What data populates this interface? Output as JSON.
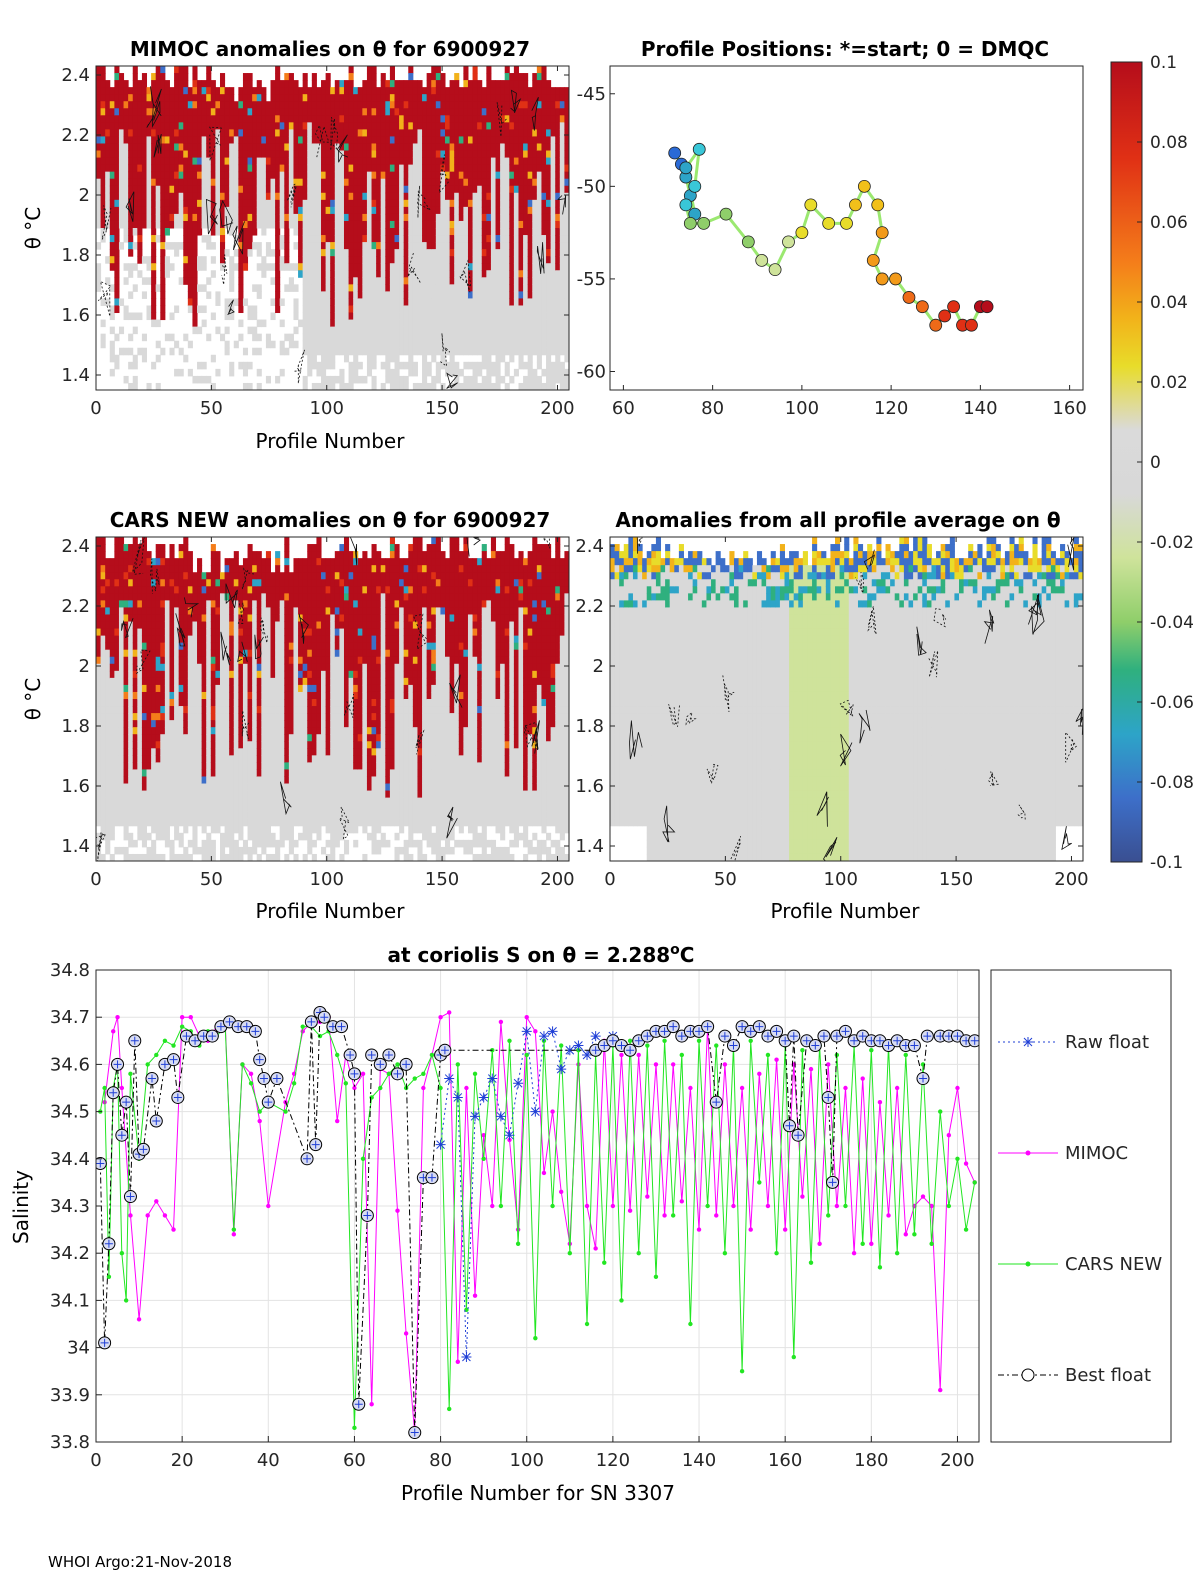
{
  "footer": "WHOI Argo:21-Nov-2018",
  "colors": {
    "red": "#b5121b",
    "gray": "#d9d9d9",
    "raw": "#1f3fd6",
    "mimoc": "#ff00ff",
    "cars": "#22e622",
    "best": "#000000"
  },
  "chart_data": [
    {
      "id": "mimoc",
      "type": "heatmap",
      "title": "MIMOC anomalies on θ  for 6900927",
      "xlabel": "Profile Number",
      "ylabel": "θ °C",
      "xlim": [
        0,
        205
      ],
      "ylim": [
        1.35,
        2.43
      ],
      "xticks": [
        0,
        50,
        100,
        150,
        200
      ],
      "yticks": [
        1.4,
        1.6,
        1.8,
        2,
        2.2,
        2.4
      ],
      "ytick_labels": [
        "1.4",
        "1.6",
        "1.8",
        "2",
        "2.2",
        "2.4"
      ]
    },
    {
      "id": "positions",
      "type": "scatter",
      "title": "Profile Positions: *=start; 0 = DMQC",
      "xlabel": "",
      "ylabel": "",
      "xlim": [
        57,
        163
      ],
      "ylim": [
        -61,
        -43.5
      ],
      "xticks": [
        60,
        80,
        100,
        120,
        140,
        160
      ],
      "yticks": [
        -45,
        -50,
        -55,
        -60
      ],
      "ytick_labels": [
        "-45",
        "-50",
        "-55",
        "-60"
      ],
      "track": [
        [
          71.5,
          -48.2
        ],
        [
          73,
          -48.8
        ],
        [
          74,
          -49.5
        ],
        [
          75,
          -50.5
        ],
        [
          76,
          -51.5
        ],
        [
          74,
          -49
        ],
        [
          77,
          -48
        ],
        [
          76,
          -50
        ],
        [
          74,
          -51
        ],
        [
          75,
          -52
        ],
        [
          78,
          -52
        ],
        [
          83,
          -51.5
        ],
        [
          88,
          -53
        ],
        [
          91,
          -54
        ],
        [
          94,
          -54.5
        ],
        [
          97,
          -53
        ],
        [
          100,
          -52.5
        ],
        [
          102,
          -51
        ],
        [
          106,
          -52
        ],
        [
          110,
          -52
        ],
        [
          112,
          -51
        ],
        [
          114,
          -50
        ],
        [
          117,
          -51
        ],
        [
          118,
          -52.5
        ],
        [
          116,
          -54
        ],
        [
          118,
          -55
        ],
        [
          121,
          -55
        ],
        [
          124,
          -56
        ],
        [
          127,
          -56.5
        ],
        [
          130,
          -57.5
        ],
        [
          132,
          -57
        ],
        [
          134,
          -56.5
        ],
        [
          136,
          -57.5
        ],
        [
          138,
          -57.5
        ],
        [
          140,
          -56.5
        ],
        [
          141.5,
          -56.5
        ]
      ],
      "colorbar": {
        "ticks": [
          0.1,
          0.08,
          0.06,
          0.04,
          0.02,
          0,
          -0.02,
          -0.04,
          -0.06,
          -0.08,
          -0.1
        ],
        "labels": [
          "0.1",
          "0.08",
          "0.06",
          "0.04",
          "0.02",
          "0",
          "-0.02",
          "-0.04",
          "-0.06",
          "-0.08",
          "-0.1"
        ]
      }
    },
    {
      "id": "cars",
      "type": "heatmap",
      "title": "CARS NEW anomalies on θ for 6900927",
      "xlabel": "Profile Number",
      "ylabel": "θ °C",
      "xlim": [
        0,
        205
      ],
      "ylim": [
        1.35,
        2.43
      ],
      "xticks": [
        0,
        50,
        100,
        150,
        200
      ],
      "yticks": [
        1.4,
        1.6,
        1.8,
        2,
        2.2,
        2.4
      ],
      "ytick_labels": [
        "1.4",
        "1.6",
        "1.8",
        "2",
        "2.2",
        "2.4"
      ]
    },
    {
      "id": "average",
      "type": "heatmap",
      "title": "Anomalies from all profile average on θ",
      "xlabel": "Profile Number",
      "ylabel": "",
      "xlim": [
        0,
        205
      ],
      "ylim": [
        1.35,
        2.43
      ],
      "xticks": [
        0,
        50,
        100,
        150,
        200
      ],
      "yticks": [
        1.4,
        1.6,
        1.8,
        2,
        2.2,
        2.4
      ],
      "ytick_labels": [
        "1.4",
        "1.6",
        "1.8",
        "2",
        "2.2",
        "2.4"
      ]
    },
    {
      "id": "salinity",
      "type": "line",
      "title": "at coriolis S on θ = 2.288°C",
      "title_main": "at coriolis S on θ = 2.288",
      "title_unit": "o",
      "title_tail": "C",
      "xlabel": "Profile Number for SN 3307",
      "ylabel": "Salinity",
      "xlim": [
        0,
        205
      ],
      "ylim": [
        33.8,
        34.8
      ],
      "xticks": [
        0,
        20,
        40,
        60,
        80,
        100,
        120,
        140,
        160,
        180,
        200
      ],
      "yticks": [
        33.8,
        33.9,
        34.0,
        34.1,
        34.2,
        34.3,
        34.4,
        34.5,
        34.6,
        34.7,
        34.8
      ],
      "ytick_labels": [
        "33.8",
        "33.9",
        "34",
        "34.1",
        "34.2",
        "34.3",
        "34.4",
        "34.5",
        "34.6",
        "34.7",
        "34.8"
      ],
      "legend": [
        "Raw float",
        "MIMOC",
        "CARS NEW",
        "Best float"
      ],
      "series": [
        {
          "name": "Raw float",
          "x": [
            80,
            82,
            84,
            86,
            88,
            90,
            92,
            94,
            96,
            98,
            100,
            102,
            104,
            106,
            108,
            110,
            112,
            114,
            116,
            118,
            120
          ],
          "values": [
            34.43,
            34.57,
            34.53,
            33.98,
            34.49,
            34.53,
            34.57,
            34.49,
            34.45,
            34.56,
            34.67,
            34.5,
            34.66,
            34.67,
            34.59,
            34.63,
            34.64,
            34.62,
            34.66,
            34.64,
            34.66
          ]
        },
        {
          "name": "MIMOC",
          "x": [
            2,
            4,
            5,
            6,
            8,
            10,
            12,
            14,
            16,
            18,
            20,
            22,
            24,
            26,
            28,
            30,
            32,
            34,
            36,
            38,
            40,
            44,
            46,
            48,
            50,
            52,
            54,
            56,
            58,
            60,
            62,
            64,
            66,
            68,
            70,
            72,
            74,
            76,
            78,
            80,
            82,
            84,
            86,
            88,
            90,
            92,
            94,
            96,
            98,
            100,
            102,
            104,
            106,
            108,
            110,
            112,
            114,
            116,
            118,
            120,
            122,
            124,
            126,
            128,
            130,
            132,
            134,
            136,
            138,
            140,
            142,
            144,
            146,
            148,
            150,
            152,
            154,
            156,
            158,
            160,
            162,
            164,
            166,
            168,
            170,
            172,
            174,
            176,
            178,
            180,
            182,
            184,
            186,
            188,
            190,
            192,
            194,
            196,
            198,
            200,
            202,
            204
          ],
          "values": [
            34.52,
            34.67,
            34.7,
            34.55,
            34.28,
            34.06,
            34.28,
            34.31,
            34.28,
            34.25,
            34.7,
            34.7,
            34.66,
            34.65,
            34.68,
            34.69,
            34.24,
            34.6,
            34.58,
            34.48,
            34.3,
            34.52,
            34.58,
            34.67,
            34.69,
            34.69,
            34.7,
            34.48,
            34.62,
            34.55,
            34.58,
            33.88,
            34.59,
            34.58,
            34.29,
            34.03,
            33.82,
            34.55,
            34.62,
            34.7,
            34.71,
            33.97,
            34.55,
            34.11,
            34.45,
            34.3,
            34.69,
            34.44,
            34.25,
            34.7,
            34.67,
            34.37,
            34.5,
            34.33,
            34.22,
            34.6,
            34.3,
            34.21,
            34.65,
            34.3,
            34.62,
            34.29,
            34.62,
            34.32,
            34.6,
            34.28,
            34.6,
            34.31,
            34.55,
            34.25,
            34.68,
            34.28,
            34.6,
            34.3,
            34.55,
            34.25,
            34.58,
            34.3,
            34.61,
            34.25,
            34.6,
            34.32,
            34.59,
            34.22,
            34.6,
            34.3,
            34.55,
            34.2,
            34.57,
            34.22,
            34.52,
            34.28,
            34.55,
            34.24,
            34.3,
            34.32,
            34.3,
            33.91,
            34.45,
            34.55,
            34.39,
            34.35
          ]
        },
        {
          "name": "CARS NEW",
          "x": [
            1,
            2,
            3,
            4,
            5,
            6,
            7,
            8,
            10,
            12,
            14,
            16,
            18,
            20,
            22,
            24,
            26,
            28,
            30,
            32,
            34,
            36,
            38,
            40,
            44,
            46,
            48,
            50,
            52,
            54,
            56,
            58,
            60,
            62,
            64,
            66,
            68,
            70,
            72,
            74,
            76,
            78,
            80,
            82,
            84,
            86,
            88,
            90,
            92,
            94,
            96,
            98,
            100,
            102,
            104,
            106,
            108,
            110,
            112,
            114,
            116,
            118,
            120,
            122,
            124,
            126,
            128,
            130,
            132,
            134,
            136,
            138,
            140,
            142,
            144,
            146,
            148,
            150,
            152,
            154,
            156,
            158,
            160,
            162,
            164,
            166,
            168,
            170,
            172,
            174,
            176,
            178,
            180,
            182,
            184,
            186,
            188,
            190,
            192,
            194,
            196,
            198,
            200,
            202,
            204
          ],
          "values": [
            34.5,
            34.55,
            34.15,
            34.55,
            34.6,
            34.2,
            34.1,
            34.58,
            34.4,
            34.6,
            34.62,
            34.65,
            34.64,
            34.68,
            34.67,
            34.64,
            34.67,
            34.66,
            34.68,
            34.25,
            34.6,
            34.56,
            34.5,
            34.52,
            34.5,
            34.56,
            34.68,
            34.68,
            34.66,
            34.67,
            34.62,
            34.56,
            33.83,
            34.4,
            34.53,
            34.55,
            34.58,
            34.6,
            34.55,
            34.57,
            34.58,
            34.62,
            34.55,
            33.87,
            34.6,
            34.08,
            34.58,
            34.4,
            34.63,
            34.3,
            34.65,
            34.22,
            34.62,
            34.02,
            34.65,
            34.3,
            34.64,
            34.2,
            34.63,
            34.05,
            34.62,
            34.18,
            34.64,
            34.1,
            34.65,
            34.2,
            34.64,
            34.15,
            34.65,
            34.28,
            34.62,
            34.05,
            34.65,
            34.3,
            34.64,
            34.2,
            34.64,
            33.95,
            34.65,
            34.35,
            34.62,
            34.2,
            34.64,
            33.98,
            34.63,
            34.18,
            34.64,
            34.28,
            34.62,
            34.3,
            34.64,
            34.22,
            34.63,
            34.17,
            34.64,
            34.2,
            34.62,
            34.24,
            34.6,
            34.22,
            34.5,
            34.3,
            34.4,
            34.25,
            34.35
          ]
        },
        {
          "name": "Best float",
          "x": [
            1,
            2,
            3,
            4,
            5,
            6,
            7,
            8,
            9,
            10,
            11,
            13,
            14,
            16,
            18,
            19,
            21,
            23,
            25,
            27,
            29,
            31,
            33,
            35,
            37,
            38,
            39,
            40,
            42,
            49,
            50,
            51,
            52,
            53,
            55,
            57,
            59,
            60,
            61,
            63,
            64,
            66,
            68,
            70,
            72,
            74,
            76,
            78,
            80,
            81,
            116,
            118,
            120,
            122,
            124,
            126,
            128,
            130,
            132,
            134,
            136,
            138,
            140,
            142,
            144,
            146,
            148,
            150,
            152,
            154,
            156,
            158,
            160,
            161,
            162,
            163,
            165,
            167,
            169,
            170,
            171,
            172,
            174,
            176,
            178,
            180,
            182,
            184,
            186,
            188,
            190,
            192,
            193,
            196,
            198,
            200,
            202,
            204
          ],
          "values": [
            34.39,
            34.01,
            34.22,
            34.54,
            34.6,
            34.45,
            34.52,
            34.32,
            34.65,
            34.41,
            34.42,
            34.57,
            34.48,
            34.6,
            34.61,
            34.53,
            34.66,
            34.65,
            34.66,
            34.66,
            34.68,
            34.69,
            34.68,
            34.68,
            34.67,
            34.61,
            34.57,
            34.52,
            34.57,
            34.4,
            34.69,
            34.43,
            34.71,
            34.7,
            34.68,
            34.68,
            34.62,
            34.58,
            33.88,
            34.28,
            34.62,
            34.6,
            34.62,
            34.58,
            34.6,
            33.82,
            34.36,
            34.36,
            34.62,
            34.63,
            34.63,
            34.64,
            34.65,
            34.64,
            34.63,
            34.65,
            34.66,
            34.67,
            34.67,
            34.68,
            34.66,
            34.67,
            34.67,
            34.68,
            34.52,
            34.66,
            34.64,
            34.68,
            34.67,
            34.68,
            34.66,
            34.67,
            34.65,
            34.47,
            34.66,
            34.45,
            34.65,
            34.64,
            34.66,
            34.53,
            34.35,
            34.66,
            34.67,
            34.65,
            34.66,
            34.65,
            34.65,
            34.64,
            34.65,
            34.64,
            34.64,
            34.57,
            34.66,
            34.66,
            34.66,
            34.66,
            34.65,
            34.65
          ]
        }
      ]
    }
  ]
}
